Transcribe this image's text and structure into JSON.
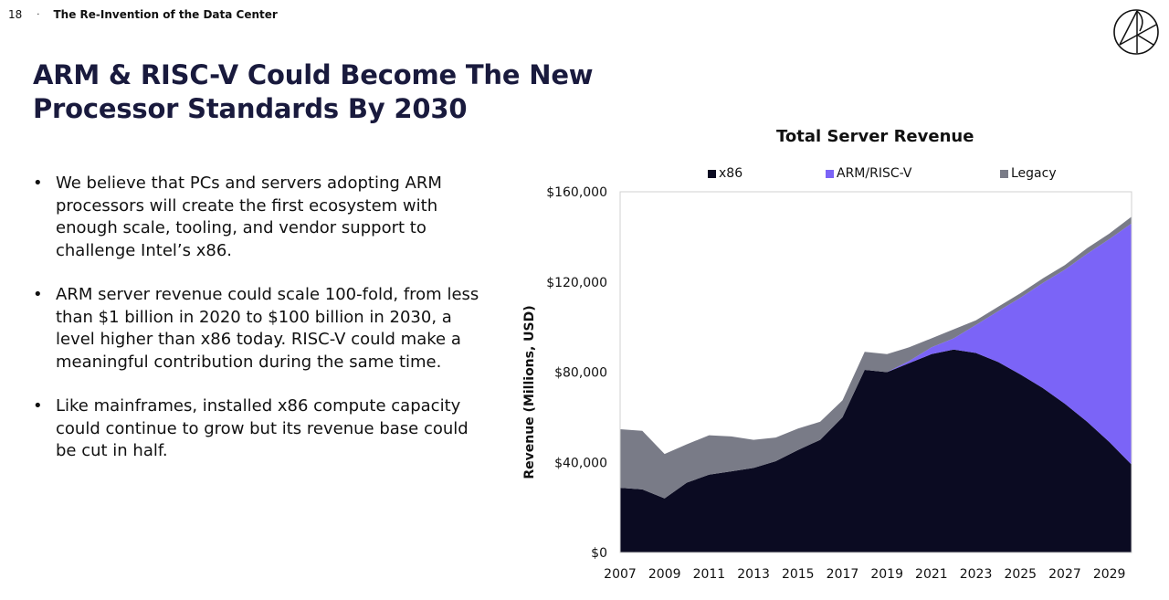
{
  "header": {
    "page_number": "18",
    "separator": "·",
    "section": "The Re-Invention of the Data Center",
    "logo_icon": "ark-circle-logo"
  },
  "slide": {
    "title_line1": "ARM & RISC-V Could Become The New",
    "title_line2": "Processor Standards By 2030",
    "bullets": [
      "We believe that PCs and servers adopting ARM processors will create the first ecosystem with enough scale, tooling, and vendor support to challenge Intel’s x86.",
      "ARM server revenue could scale 100-fold, from less than $1 billion in 2020 to $100 billion in 2030, a level higher than x86 today. RISC-V could make a meaningful contribution during the same time.",
      "Like mainframes, installed x86 compute capacity could continue to grow but its revenue base could be cut in half."
    ],
    "bullet_glyph": "•"
  },
  "chart_data": {
    "type": "area",
    "stacked": true,
    "title": "Total Server Revenue",
    "xlabel": "",
    "ylabel": "Revenue (Millions, USD)",
    "ylim": [
      0,
      160000
    ],
    "yticks": [
      0,
      40000,
      80000,
      120000,
      160000
    ],
    "ytick_labels": [
      "$0",
      "$40,000",
      "$80,000",
      "$120,000",
      "$160,000"
    ],
    "x": [
      2007,
      2008,
      2009,
      2010,
      2011,
      2012,
      2013,
      2014,
      2015,
      2016,
      2017,
      2018,
      2019,
      2020,
      2021,
      2022,
      2023,
      2024,
      2025,
      2026,
      2027,
      2028,
      2029,
      2030
    ],
    "xtick_labels": [
      "2007",
      "2009",
      "2011",
      "2013",
      "2015",
      "2017",
      "2019",
      "2021",
      "2023",
      "2025",
      "2027",
      "2029"
    ],
    "grid": false,
    "legend_position": "top",
    "series": [
      {
        "name": "x86",
        "color": "#0b0b22",
        "values": [
          28700,
          28000,
          24000,
          31000,
          34500,
          36000,
          37500,
          40500,
          45500,
          50000,
          60000,
          81000,
          80000,
          84000,
          88000,
          90000,
          88500,
          84500,
          79000,
          73000,
          66000,
          58000,
          49000,
          39000
        ]
      },
      {
        "name": "ARM/RISC-V",
        "color": "#7b64f7",
        "values": [
          0,
          0,
          0,
          0,
          0,
          0,
          0,
          0,
          0,
          0,
          0,
          0,
          0,
          1000,
          3000,
          5000,
          12500,
          22500,
          34000,
          46500,
          59500,
          74500,
          90000,
          107000
        ]
      },
      {
        "name": "Legacy",
        "color": "#797b87",
        "values": [
          26000,
          26000,
          19700,
          17000,
          17500,
          15500,
          12500,
          10500,
          9500,
          8000,
          7500,
          8000,
          8000,
          6000,
          4000,
          4000,
          2000,
          2000,
          2000,
          2000,
          2000,
          2500,
          2500,
          3000
        ]
      }
    ]
  }
}
